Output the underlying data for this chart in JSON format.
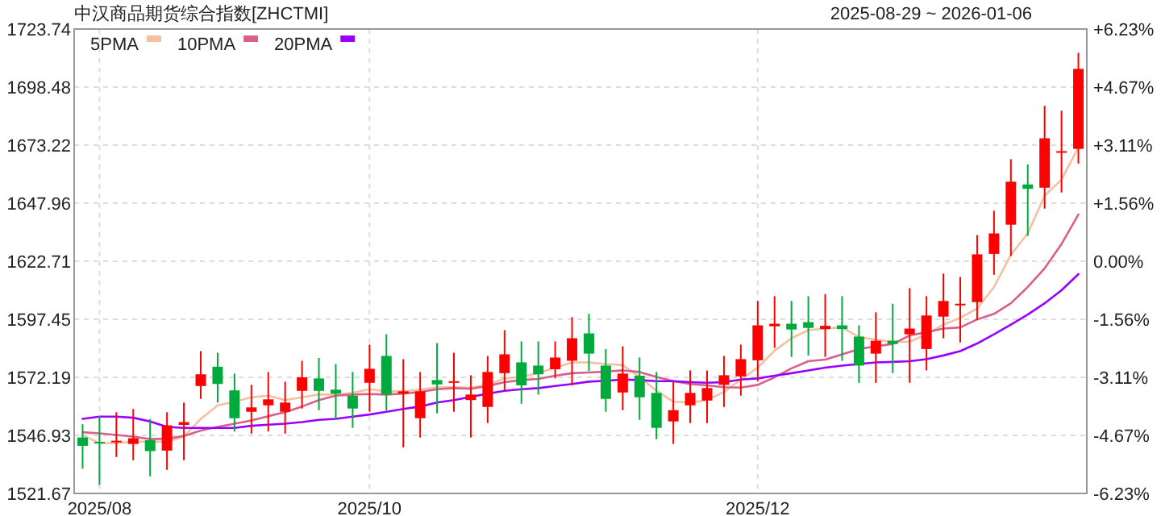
{
  "chart_data": {
    "type": "candlestick",
    "title": "中汉商品期货综合指数[ZHCTMI]",
    "subtitle": "2025-08-29 ~ 2026-01-06",
    "categories": [
      null,
      "2025/08",
      null,
      null,
      null,
      null,
      null,
      null,
      null,
      null,
      null,
      null,
      null,
      null,
      null,
      null,
      null,
      "2025/10",
      null,
      null,
      null,
      null,
      null,
      null,
      null,
      null,
      null,
      null,
      null,
      null,
      null,
      null,
      null,
      null,
      null,
      null,
      null,
      null,
      null,
      null,
      "2025/12",
      null,
      null,
      null,
      null,
      null,
      null,
      null,
      null,
      null,
      null,
      null,
      null,
      null,
      null,
      null,
      null,
      null,
      null,
      null
    ],
    "ohlc": [
      [
        1546.0,
        1551.8,
        1532.4,
        1542.4
      ],
      [
        1544.1,
        1555.3,
        1525.4,
        1543.4
      ],
      [
        1543.9,
        1557.0,
        1537.5,
        1544.6
      ],
      [
        1543.2,
        1558.4,
        1536.1,
        1545.7
      ],
      [
        1544.8,
        1554.1,
        1529.1,
        1540.1
      ],
      [
        1540.3,
        1557.0,
        1531.9,
        1551.3
      ],
      [
        1551.5,
        1561.2,
        1536.1,
        1552.7
      ],
      [
        1568.4,
        1583.6,
        1562.8,
        1573.5
      ],
      [
        1576.8,
        1582.9,
        1561.2,
        1569.3
      ],
      [
        1566.5,
        1573.8,
        1548.6,
        1554.4
      ],
      [
        1557.2,
        1568.9,
        1547.7,
        1559.1
      ],
      [
        1560.0,
        1574.5,
        1548.6,
        1562.6
      ],
      [
        1557.2,
        1570.3,
        1547.7,
        1561.2
      ],
      [
        1566.3,
        1579.4,
        1558.6,
        1572.2
      ],
      [
        1571.7,
        1580.6,
        1557.9,
        1566.3
      ],
      [
        1566.8,
        1578.0,
        1553.9,
        1565.1
      ],
      [
        1564.2,
        1574.5,
        1550.2,
        1558.6
      ],
      [
        1569.8,
        1586.4,
        1557.2,
        1575.9
      ],
      [
        1581.5,
        1590.9,
        1557.7,
        1564.7
      ],
      [
        1565.1,
        1580.1,
        1541.7,
        1566.1
      ],
      [
        1554.4,
        1574.5,
        1546.0,
        1566.1
      ],
      [
        1571.0,
        1587.1,
        1556.5,
        1569.1
      ],
      [
        1570.1,
        1582.9,
        1557.2,
        1570.5
      ],
      [
        1562.3,
        1573.1,
        1546.0,
        1564.7
      ],
      [
        1559.3,
        1581.5,
        1552.3,
        1574.5
      ],
      [
        1574.0,
        1592.7,
        1566.5,
        1582.2
      ],
      [
        1578.7,
        1587.8,
        1560.7,
        1568.7
      ],
      [
        1577.3,
        1587.8,
        1564.7,
        1573.5
      ],
      [
        1575.7,
        1587.8,
        1571.7,
        1580.8
      ],
      [
        1579.4,
        1598.4,
        1568.7,
        1589.2
      ],
      [
        1591.3,
        1599.8,
        1574.9,
        1582.5
      ],
      [
        1577.3,
        1584.5,
        1557.2,
        1562.8
      ],
      [
        1565.6,
        1585.7,
        1557.9,
        1573.8
      ],
      [
        1572.9,
        1580.8,
        1553.7,
        1563.5
      ],
      [
        1565.4,
        1574.5,
        1545.3,
        1550.2
      ],
      [
        1553.0,
        1570.3,
        1543.2,
        1557.9
      ],
      [
        1560.0,
        1575.2,
        1552.3,
        1565.4
      ],
      [
        1562.1,
        1575.2,
        1552.3,
        1567.5
      ],
      [
        1568.9,
        1581.5,
        1559.3,
        1573.1
      ],
      [
        1572.6,
        1586.4,
        1564.2,
        1580.1
      ],
      [
        1579.6,
        1605.4,
        1570.5,
        1594.8
      ],
      [
        1594.4,
        1607.5,
        1585.0,
        1595.5
      ],
      [
        1595.5,
        1605.4,
        1581.1,
        1593.0
      ],
      [
        1596.2,
        1607.5,
        1581.7,
        1593.7
      ],
      [
        1593.2,
        1608.4,
        1581.1,
        1594.6
      ],
      [
        1594.8,
        1607.5,
        1579.4,
        1593.2
      ],
      [
        1589.9,
        1594.8,
        1569.8,
        1577.3
      ],
      [
        1582.5,
        1600.5,
        1569.8,
        1588.1
      ],
      [
        1588.1,
        1604.2,
        1574.0,
        1586.7
      ],
      [
        1590.9,
        1611.0,
        1569.8,
        1593.4
      ],
      [
        1584.5,
        1607.5,
        1575.2,
        1599.1
      ],
      [
        1598.6,
        1617.3,
        1589.2,
        1605.4
      ],
      [
        1603.5,
        1615.9,
        1587.4,
        1604.2
      ],
      [
        1604.9,
        1634.1,
        1597.2,
        1625.7
      ],
      [
        1625.9,
        1644.7,
        1616.8,
        1634.8
      ],
      [
        1638.6,
        1667.1,
        1625.0,
        1657.3
      ],
      [
        1656.1,
        1664.8,
        1633.7,
        1654.2
      ],
      [
        1654.7,
        1690.3,
        1645.6,
        1676.2
      ],
      [
        1669.9,
        1688.2,
        1652.6,
        1670.6
      ],
      [
        1671.6,
        1713.4,
        1665.2,
        1706.4
      ]
    ],
    "colors": [
      "#00aa3c",
      "#00aa3c",
      "#ff0000",
      "#ff0000",
      "#00aa3c",
      "#ff0000",
      "#ff0000",
      "#ff0000",
      "#00aa3c",
      "#00aa3c",
      "#ff0000",
      "#ff0000",
      "#ff0000",
      "#ff0000",
      "#00aa3c",
      "#00aa3c",
      "#00aa3c",
      "#ff0000",
      "#00aa3c",
      "#ff0000",
      "#ff0000",
      "#00aa3c",
      "#ff0000",
      "#ff0000",
      "#ff0000",
      "#ff0000",
      "#00aa3c",
      "#00aa3c",
      "#ff0000",
      "#ff0000",
      "#00aa3c",
      "#00aa3c",
      "#ff0000",
      "#00aa3c",
      "#00aa3c",
      "#ff0000",
      "#ff0000",
      "#ff0000",
      "#ff0000",
      "#ff0000",
      "#ff0000",
      "#ff0000",
      "#00aa3c",
      "#00aa3c",
      "#ff0000",
      "#00aa3c",
      "#00aa3c",
      "#ff0000",
      "#00aa3c",
      "#ff0000",
      "#ff0000",
      "#ff0000",
      "#ff0000",
      "#ff0000",
      "#ff0000",
      "#ff0000",
      "#00aa3c",
      "#ff0000",
      "#ff0000",
      "#ff0000"
    ],
    "series": [
      {
        "type": "line",
        "name": "5PMA",
        "color": "#f5c0a0",
        "values": [
          1546.9,
          1543.6,
          1543.6,
          1544.1,
          1544.3,
          1544.1,
          1546.4,
          1554.1,
          1560.0,
          1561.6,
          1563.5,
          1564.2,
          1562.3,
          1563.5,
          1564.7,
          1564.7,
          1565.4,
          1567.0,
          1566.1,
          1566.1,
          1566.8,
          1567.9,
          1567.9,
          1567.7,
          1568.9,
          1571.7,
          1572.4,
          1574.0,
          1576.4,
          1578.7,
          1578.7,
          1578.0,
          1577.5,
          1572.4,
          1566.3,
          1561.6,
          1561.2,
          1562.3,
          1565.8,
          1571.2,
          1576.4,
          1583.8,
          1589.2,
          1592.7,
          1593.4,
          1593.9,
          1589.7,
          1588.5,
          1587.6,
          1587.6,
          1590.9,
          1595.1,
          1598.1,
          1602.1,
          1611.5,
          1625.5,
          1634.8,
          1651.2,
          1658.2,
          1672.3
        ]
      },
      {
        "type": "line",
        "name": "10PMA",
        "color": "#d9608a",
        "values": [
          1548.3,
          1547.8,
          1547.1,
          1546.4,
          1545.3,
          1545.5,
          1546.7,
          1549.0,
          1550.6,
          1552.0,
          1553.4,
          1555.3,
          1557.0,
          1559.5,
          1562.3,
          1564.2,
          1564.7,
          1564.9,
          1564.7,
          1565.1,
          1565.8,
          1567.0,
          1567.5,
          1567.2,
          1568.4,
          1570.1,
          1571.0,
          1571.5,
          1572.9,
          1574.0,
          1574.3,
          1574.7,
          1575.2,
          1574.5,
          1572.4,
          1570.5,
          1569.3,
          1568.7,
          1567.9,
          1567.7,
          1568.9,
          1572.2,
          1576.1,
          1579.2,
          1579.9,
          1582.2,
          1584.5,
          1585.7,
          1586.7,
          1590.4,
          1591.8,
          1593.4,
          1593.9,
          1597.4,
          1599.8,
          1604.4,
          1611.5,
          1619.6,
          1630.2,
          1643.0
        ]
      },
      {
        "type": "line",
        "name": "20PMA",
        "color": "#9900ff",
        "values": [
          1554.1,
          1555.1,
          1555.1,
          1554.6,
          1553.0,
          1550.6,
          1550.2,
          1550.2,
          1550.2,
          1550.2,
          1551.1,
          1551.6,
          1552.0,
          1552.7,
          1553.7,
          1554.1,
          1555.1,
          1556.0,
          1557.2,
          1558.4,
          1559.5,
          1561.2,
          1562.3,
          1563.7,
          1565.1,
          1566.3,
          1567.0,
          1567.5,
          1568.4,
          1569.3,
          1570.3,
          1570.7,
          1571.2,
          1571.0,
          1570.5,
          1570.5,
          1570.1,
          1569.8,
          1570.1,
          1571.2,
          1571.7,
          1572.9,
          1574.0,
          1575.2,
          1576.4,
          1577.3,
          1578.0,
          1578.7,
          1578.9,
          1579.2,
          1580.1,
          1581.7,
          1583.6,
          1586.9,
          1590.9,
          1595.1,
          1599.5,
          1604.4,
          1610.1,
          1617.1
        ]
      }
    ],
    "ylim": [
      1521.67,
      1723.74
    ],
    "yticks": [
      1521.67,
      1546.93,
      1572.19,
      1597.45,
      1622.71,
      1647.96,
      1673.22,
      1698.48,
      1723.74
    ],
    "y2lim": [
      -6.23,
      6.23
    ],
    "y2ticks": [
      {
        "value": -6.23,
        "label": "-6.23%"
      },
      {
        "value": -4.67,
        "label": "-4.67%"
      },
      {
        "value": -3.11,
        "label": "-3.11%"
      },
      {
        "value": -1.56,
        "label": "-1.56%"
      },
      {
        "value": 0,
        "label": "0.00%"
      },
      {
        "value": 1.56,
        "label": "+1.56%"
      },
      {
        "value": 3.11,
        "label": "+3.11%"
      },
      {
        "value": 4.67,
        "label": "+4.67%"
      },
      {
        "value": 6.23,
        "label": "+6.23%"
      }
    ],
    "grid": true,
    "legend": "top left"
  }
}
